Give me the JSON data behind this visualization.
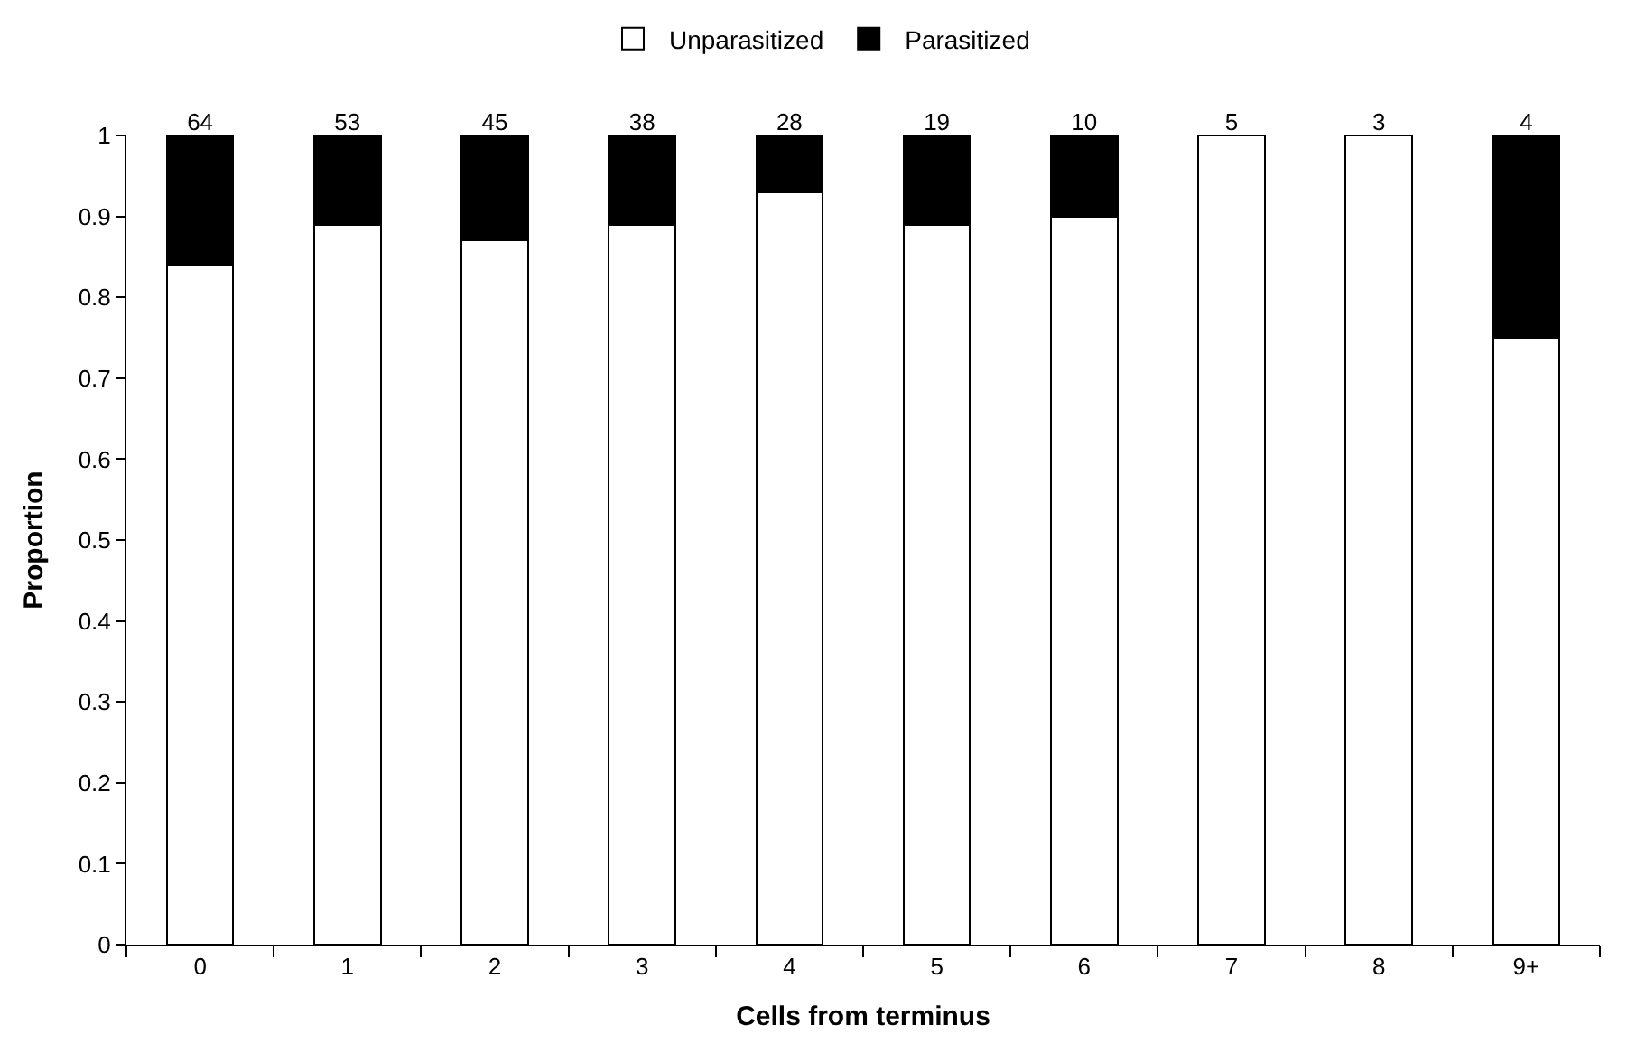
{
  "chart_data": {
    "type": "bar",
    "stacked": true,
    "xlabel": "Cells from terminus",
    "ylabel": "Proportion",
    "categories": [
      "0",
      "1",
      "2",
      "3",
      "4",
      "5",
      "6",
      "7",
      "8",
      "9+"
    ],
    "series": [
      {
        "name": "Unparasitized",
        "color": "#ffffff",
        "values": [
          0.84,
          0.89,
          0.87,
          0.89,
          0.93,
          0.89,
          0.9,
          1,
          1,
          0.75
        ]
      },
      {
        "name": "Parasitized",
        "color": "#000000",
        "values": [
          0.16,
          0.11,
          0.13,
          0.11,
          0.07,
          0.11,
          0.1,
          0,
          0,
          0.25
        ]
      }
    ],
    "annotations": [
      {
        "text": "64",
        "x": "0",
        "y": 1
      },
      {
        "text": "53",
        "x": "1",
        "y": 1
      },
      {
        "text": "45",
        "x": "2",
        "y": 1
      },
      {
        "text": "38",
        "x": "3",
        "y": 1
      },
      {
        "text": "28",
        "x": "4",
        "y": 1
      },
      {
        "text": "19",
        "x": "5",
        "y": 1
      },
      {
        "text": "10",
        "x": "6",
        "y": 1
      },
      {
        "text": "5",
        "x": "7",
        "y": 1
      },
      {
        "text": "3",
        "x": "8",
        "y": 1
      },
      {
        "text": "4",
        "x": "9+",
        "y": 1
      }
    ],
    "ylim": [
      0,
      1
    ],
    "yticks": [
      0,
      0.1,
      0.2,
      0.3,
      0.4,
      0.5,
      0.6,
      0.7,
      0.8,
      0.9,
      1
    ],
    "grid": false,
    "legend": "top"
  }
}
